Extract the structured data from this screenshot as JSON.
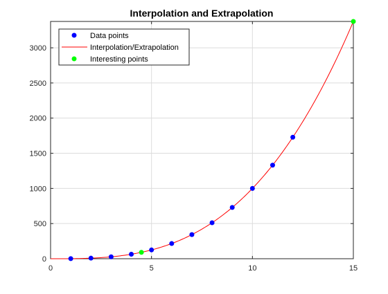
{
  "chart_data": {
    "type": "line",
    "title": "Interpolation and Extrapolation",
    "xlabel": "",
    "ylabel": "",
    "xlim": [
      0,
      15
    ],
    "ylim": [
      0,
      3375
    ],
    "x_ticks": [
      0,
      5,
      10,
      15
    ],
    "y_ticks": [
      0,
      500,
      1000,
      1500,
      2000,
      2500,
      3000
    ],
    "grid": true,
    "legend": {
      "placement": "top-left",
      "entries": [
        "Data points",
        "Interpolation/Extrapolation",
        "Interesting points"
      ]
    },
    "series": [
      {
        "name": "Data points",
        "style": "markers",
        "color": "#0000ff",
        "x": [
          1,
          2,
          3,
          4,
          5,
          6,
          7,
          8,
          9,
          10,
          11,
          12
        ],
        "y": [
          1,
          8,
          27,
          64,
          125,
          216,
          343,
          512,
          729,
          1000,
          1331,
          1728
        ]
      },
      {
        "name": "Interpolation/Extrapolation",
        "style": "line",
        "color": "#ff0000",
        "function": "y = x^3",
        "x_range": [
          0,
          15
        ]
      },
      {
        "name": "Interesting points",
        "style": "markers",
        "color": "#00ff00",
        "x": [
          4.5,
          15
        ],
        "y": [
          91.125,
          3375
        ]
      }
    ]
  }
}
